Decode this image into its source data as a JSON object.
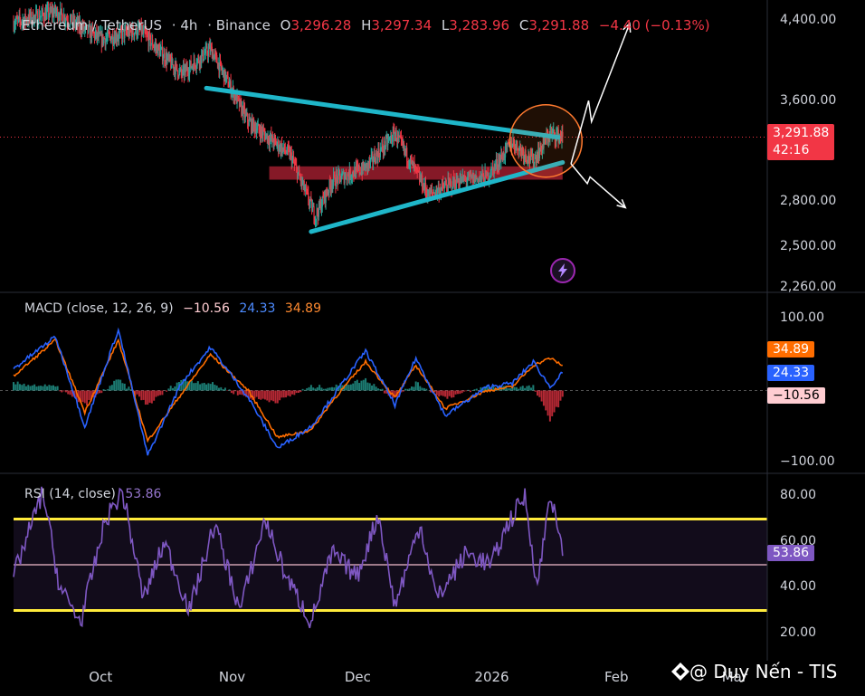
{
  "header": {
    "symbol": "Ethereum / TetherUS",
    "interval": "4h",
    "exchange": "Binance",
    "open_label": "O",
    "open": "3,296.28",
    "high_label": "H",
    "high": "3,297.34",
    "low_label": "L",
    "low": "3,283.96",
    "close_label": "C",
    "close": "3,291.88",
    "change": "−4.40 (−0.13%)"
  },
  "price_tag": {
    "value": "3,291.88",
    "countdown": "42:16"
  },
  "macd": {
    "label": "MACD (close, 12, 26, 9)",
    "hist": "−10.56",
    "macd_value": "24.33",
    "signal": "34.89"
  },
  "rsi": {
    "label": "RSI (14, close)",
    "value": "53.86"
  },
  "colors": {
    "up": "#26a69a",
    "down": "#f23645",
    "macd": "#2962ff",
    "signal": "#ff6d00",
    "rsi": "#7e57c2",
    "trendline": "#1fb6c9",
    "band": "#ffeb3b"
  },
  "watermark": "@ Duy Nến - TIS",
  "icons": [
    "binance-logo-icon",
    "lightning-icon"
  ],
  "chart_data": [
    {
      "type": "candlestick",
      "title": "Ethereum / TetherUS · 4h · Binance",
      "y_scale": "log",
      "ylim": [
        2260,
        4480
      ],
      "ytick_labels": [
        "4,400.00",
        "3,600.00",
        "2,800.00",
        "2,500.00",
        "2,260.00"
      ],
      "yticks": [
        4400,
        3600,
        2800,
        2500,
        2260
      ],
      "xtick_labels": [
        "Oct",
        "Nov",
        "Dec",
        "2026",
        "Feb",
        "Mar"
      ],
      "x_keypoints": [
        "2025-09-10",
        "2025-09-20",
        "2025-10-01",
        "2025-10-10",
        "2025-10-20",
        "2025-10-27",
        "2025-11-05",
        "2025-11-15",
        "2025-11-21",
        "2025-11-25",
        "2025-12-03",
        "2025-12-10",
        "2025-12-18",
        "2025-12-25",
        "2026-01-01",
        "2026-01-07",
        "2026-01-12",
        "2026-01-16",
        "2026-01-19"
      ],
      "close_keypoints": [
        4380,
        4500,
        4200,
        4300,
        3850,
        4100,
        3420,
        3150,
        2700,
        2950,
        3050,
        3320,
        2850,
        2950,
        2980,
        3250,
        3100,
        3320,
        3291.88
      ],
      "last_close": 3291.88,
      "annotations": {
        "upper_trendline": {
          "from": [
            "2025-10-26",
            3720
          ],
          "to": [
            "2026-01-18",
            3290
          ]
        },
        "lower_trendline": {
          "from": [
            "2025-11-20",
            2600
          ],
          "to": [
            "2026-01-19",
            3090
          ]
        },
        "support_zone": {
          "from": "2025-11-10",
          "to": "2026-01-19",
          "low": 2960,
          "high": 3060
        },
        "circle_center": [
          "2026-01-15",
          3260
        ],
        "arrow_up": {
          "from": [
            "2026-01-21",
            3080
          ],
          "to": [
            "2026-02-04",
            4370
          ]
        },
        "arrow_down": {
          "from": [
            "2026-01-21",
            3080
          ],
          "to": [
            "2026-02-03",
            2760
          ]
        }
      }
    },
    {
      "type": "line",
      "title": "MACD (close, 12, 26, 9)",
      "ylim": [
        -115,
        115
      ],
      "ytick_labels": [
        "100.00",
        "−100.00"
      ],
      "yticks": [
        100,
        -100
      ],
      "x_keypoints": [
        "2025-09-10",
        "2025-09-20",
        "2025-09-27",
        "2025-10-05",
        "2025-10-12",
        "2025-10-20",
        "2025-10-27",
        "2025-11-05",
        "2025-11-12",
        "2025-11-20",
        "2025-11-25",
        "2025-12-03",
        "2025-12-10",
        "2025-12-15",
        "2025-12-22",
        "2026-01-01",
        "2026-01-07",
        "2026-01-12",
        "2026-01-16",
        "2026-01-19"
      ],
      "series": [
        {
          "name": "MACD",
          "values": [
            30,
            75,
            -50,
            85,
            -90,
            10,
            60,
            -10,
            -80,
            -50,
            -10,
            55,
            -20,
            45,
            -35,
            5,
            10,
            40,
            5,
            24.33
          ]
        },
        {
          "name": "Signal",
          "values": [
            20,
            70,
            -30,
            70,
            -70,
            -5,
            50,
            0,
            -65,
            -55,
            -15,
            40,
            -10,
            35,
            -25,
            0,
            5,
            35,
            45,
            34.89
          ]
        },
        {
          "name": "Histogram",
          "values": [
            10,
            5,
            -20,
            15,
            -20,
            15,
            10,
            -10,
            -15,
            5,
            5,
            15,
            -10,
            10,
            -10,
            5,
            5,
            5,
            -40,
            -10.56
          ]
        }
      ]
    },
    {
      "type": "line",
      "title": "RSI (14, close)",
      "ylim": [
        10,
        88
      ],
      "ytick_labels": [
        "80.00",
        "60.00",
        "40.00",
        "20.00"
      ],
      "yticks": [
        80,
        60,
        40,
        20
      ],
      "bands": [
        30,
        50,
        70
      ],
      "x_keypoints": [
        "2025-09-10",
        "2025-09-17",
        "2025-09-21",
        "2025-09-26",
        "2025-10-02",
        "2025-10-06",
        "2025-10-11",
        "2025-10-16",
        "2025-10-22",
        "2025-10-28",
        "2025-11-03",
        "2025-11-09",
        "2025-11-14",
        "2025-11-20",
        "2025-11-25",
        "2025-12-01",
        "2025-12-06",
        "2025-12-10",
        "2025-12-16",
        "2025-12-20",
        "2025-12-27",
        "2026-01-02",
        "2026-01-06",
        "2026-01-10",
        "2026-01-13",
        "2026-01-16",
        "2026-01-19"
      ],
      "series": [
        {
          "name": "RSI",
          "values": [
            45,
            82,
            40,
            25,
            70,
            82,
            35,
            60,
            30,
            68,
            30,
            70,
            45,
            25,
            55,
            45,
            72,
            32,
            68,
            35,
            55,
            50,
            68,
            80,
            40,
            82,
            53.86
          ]
        }
      ]
    }
  ]
}
